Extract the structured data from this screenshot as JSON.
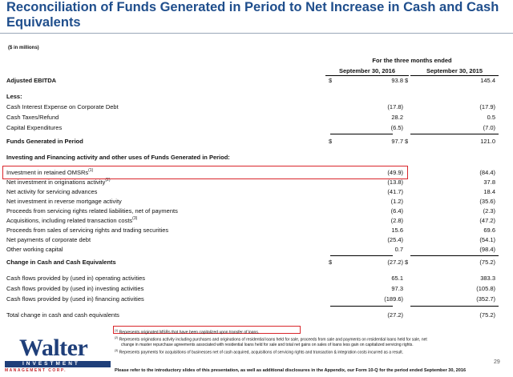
{
  "title": "Reconciliation of Funds Generated in Period to Net Increase in Cash and Cash Equivalents",
  "units": "($ in millions)",
  "period_header": "For the three months ended",
  "columns": [
    "September 30, 2016",
    "September 30, 2015"
  ],
  "rows": [
    {
      "label": "Adjusted EBITDA",
      "v1": "93.8",
      "v2": "145.4",
      "dollar1": "$",
      "dollar2": "$"
    },
    {
      "label": "Less:"
    },
    {
      "label": "Cash Interest Expense on Corporate Debt",
      "v1": "(17.8)",
      "v2": "(17.9)"
    },
    {
      "label": "Cash Taxes/Refund",
      "v1": "28.2",
      "v2": "0.5"
    },
    {
      "label": "Capital Expenditures",
      "v1": "(6.5)",
      "v2": "(7.0)"
    },
    {
      "label": "Funds Generated in Period",
      "v1": "97.7",
      "v2": "121.0",
      "dollar1": "$",
      "dollar2": "$"
    },
    {
      "label": "Investing and Financing activity and other uses of Funds Generated in Period:"
    },
    {
      "label": "Investment in retained OMSRs",
      "sup": "(1)",
      "v1": "(49.9)",
      "v2": "(84.4)"
    },
    {
      "label": "Net investment in originations activity",
      "sup": "(2)",
      "v1": "(13.8)",
      "v2": "37.8"
    },
    {
      "label": "Net activity for servicing advances",
      "v1": "(41.7)",
      "v2": "18.4"
    },
    {
      "label": "Net investment in reverse mortgage activity",
      "v1": "(1.2)",
      "v2": "(35.6)"
    },
    {
      "label": "Proceeds from servicing rights related liabilities, net of payments",
      "v1": "(6.4)",
      "v2": "(2.3)"
    },
    {
      "label": "Acquisitions, including related transaction costs",
      "sup": "(3)",
      "v1": "(2.8)",
      "v2": "(47.2)"
    },
    {
      "label": "Proceeds from sales of servicing rights and trading securities",
      "v1": "15.6",
      "v2": "69.6"
    },
    {
      "label": "Net payments of corporate debt",
      "v1": "(25.4)",
      "v2": "(54.1)"
    },
    {
      "label": "Other working capital",
      "v1": "0.7",
      "v2": "(98.4)"
    },
    {
      "label": "Change in Cash and Cash Equivalents",
      "v1": "(27.2)",
      "v2": "(75.2)",
      "dollar1": "$",
      "dollar2": "$"
    },
    {
      "label": "Cash flows provided by (used in) operating activities",
      "v1": "65.1",
      "v2": "383.3"
    },
    {
      "label": "Cash flows provided by (used in) investing activities",
      "v1": "97.3",
      "v2": "(105.8)"
    },
    {
      "label": "Cash flows provided by (used in) financing activities",
      "v1": "(189.6)",
      "v2": "(352.7)"
    },
    {
      "label": "Total change in cash and cash equivalents",
      "v1": "(27.2)",
      "v2": "(75.2)"
    }
  ],
  "footnotes": [
    {
      "mark": "(1)",
      "text": "Represents originated MSRs that have been capitalized upon transfer of loans."
    },
    {
      "mark": "(2)",
      "text": "Represents originations activity including purchases and originations of residential loans held for sale, proceeds from sale and payments on residential loans held for sale, net"
    },
    {
      "mark": "",
      "text": "change in master repurchase agreements associated with residential loans held for sale and total net gains on sales of loans less gain on capitalized servicing rights."
    },
    {
      "mark": "(3)",
      "text": "Represents payments for acquisitions of businesses net of cash acquired, acquisitions of servicing rights and transaction & integration costs incurred as a result."
    }
  ],
  "logo": {
    "name": "Walter",
    "band": "INVESTMENT",
    "sub": "MANAGEMENT CORP."
  },
  "disclaimer": "Please refer to the introductory slides of this presentation, as well as additional disclosures in the Appendix, our Form 10-Q for the period ended September 30, 2016",
  "page_number": "29",
  "colors": {
    "title": "#1f4e8c",
    "highlight": "#d9262b",
    "logo": "#1f3f7a"
  }
}
